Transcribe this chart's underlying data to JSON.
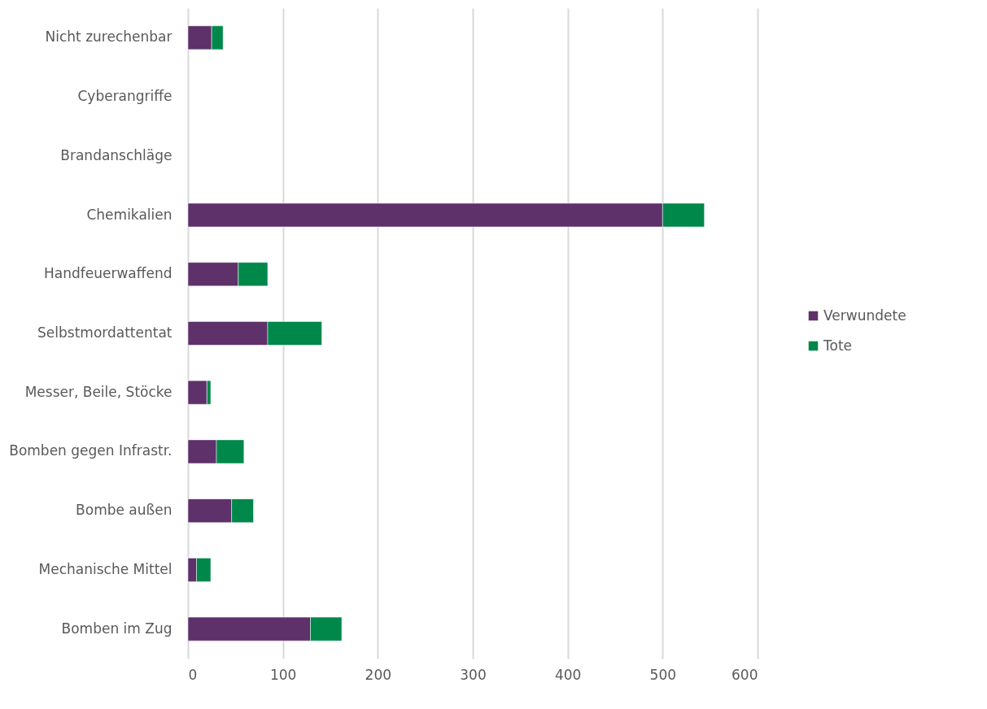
{
  "chart_data": {
    "type": "bar",
    "orientation": "horizontal",
    "stacked": true,
    "categories": [
      "Nicht zurechenbar",
      "Cyberangriffe",
      "Brandanschläge",
      "Chemikalien",
      "Handfeuerwaffend",
      "Selbstmordattentat",
      "Messer, Beile, Stöcke",
      "Bomben gegen Infrastr.",
      "Bombe außen",
      "Mechanische Mittel",
      "Bomben im Zug"
    ],
    "series": [
      {
        "name": "Verwundete",
        "color": "#5e316b",
        "values": [
          25,
          0,
          0,
          500,
          53,
          84,
          20,
          30,
          46,
          9,
          129
        ]
      },
      {
        "name": "Tote",
        "color": "#00874a",
        "values": [
          12,
          0,
          0,
          44,
          31,
          57,
          4,
          29,
          23,
          15,
          33
        ]
      }
    ],
    "xlim": [
      0,
      600
    ],
    "xticks": [
      0,
      100,
      200,
      300,
      400,
      500,
      600
    ],
    "grid": "x",
    "legend": "right"
  }
}
